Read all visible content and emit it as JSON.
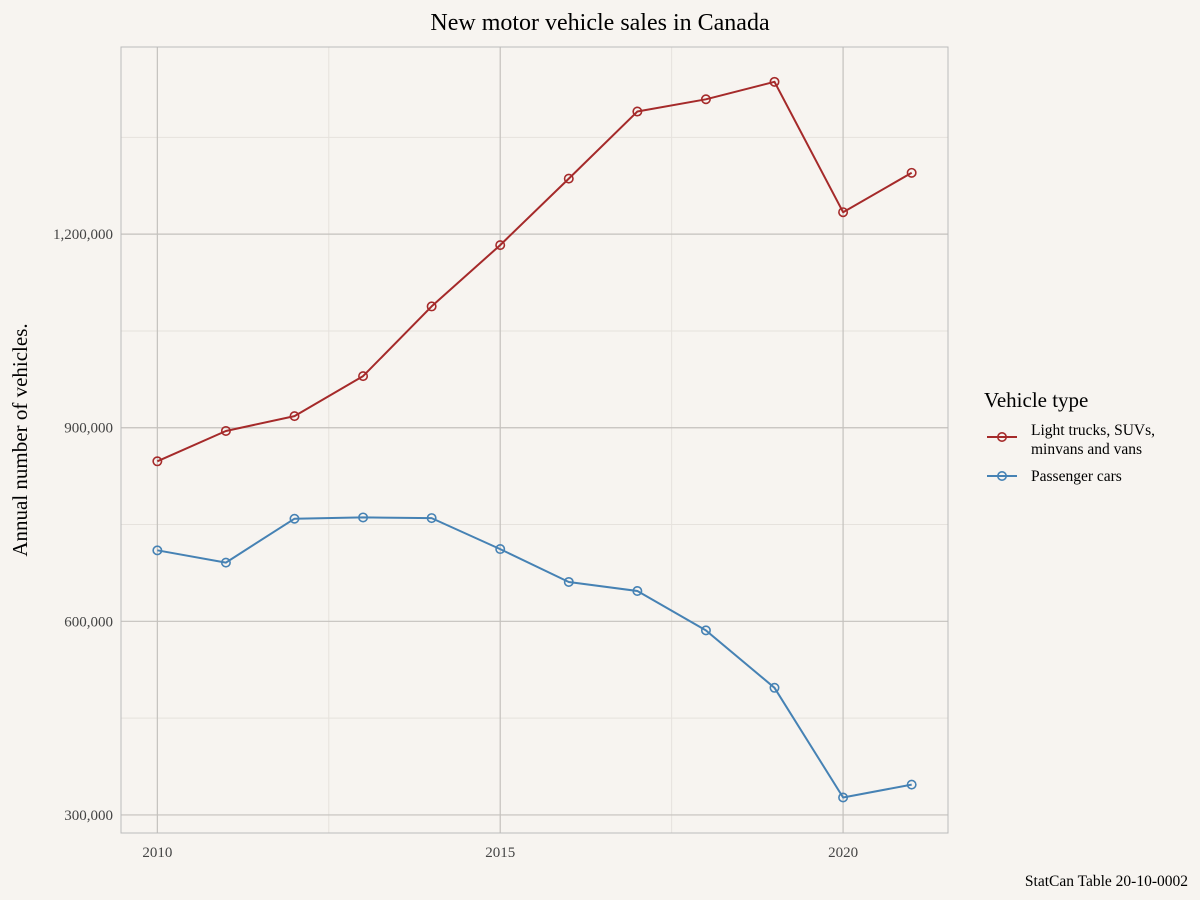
{
  "chart_data": {
    "type": "line",
    "title": "New motor vehicle sales in Canada",
    "xlabel": "",
    "ylabel": "Annual number of vehicles.",
    "caption": "StatCan Table 20-10-0002",
    "x": [
      2010,
      2011,
      2012,
      2013,
      2014,
      2015,
      2016,
      2017,
      2018,
      2019,
      2020,
      2021
    ],
    "xlim": [
      2009.47,
      2021.53
    ],
    "ylim": [
      272000,
      1490000
    ],
    "x_ticks": [
      2010,
      2015,
      2020
    ],
    "x_tick_labels": [
      "2010",
      "2015",
      "2020"
    ],
    "y_ticks": [
      300000,
      600000,
      900000,
      1200000
    ],
    "y_tick_labels": [
      "300,000",
      "600,000",
      "900,000",
      "1,200,000"
    ],
    "grid": true,
    "legend": {
      "title": "Vehicle type",
      "placement": "right"
    },
    "series": [
      {
        "name": "Light trucks, SUVs, minvans and vans",
        "label_lines": [
          "Light trucks, SUVs,",
          "minvans and vans"
        ],
        "color": "#a52a2a",
        "values": [
          848000,
          895000,
          918000,
          980000,
          1088000,
          1183000,
          1286000,
          1390000,
          1409000,
          1436000,
          1234000,
          1295000
        ]
      },
      {
        "name": "Passenger cars",
        "label_lines": [
          "Passenger cars"
        ],
        "color": "#4682b4",
        "values": [
          710000,
          691000,
          759000,
          761000,
          760000,
          712000,
          661000,
          647000,
          586000,
          497000,
          327000,
          347000
        ]
      }
    ]
  }
}
